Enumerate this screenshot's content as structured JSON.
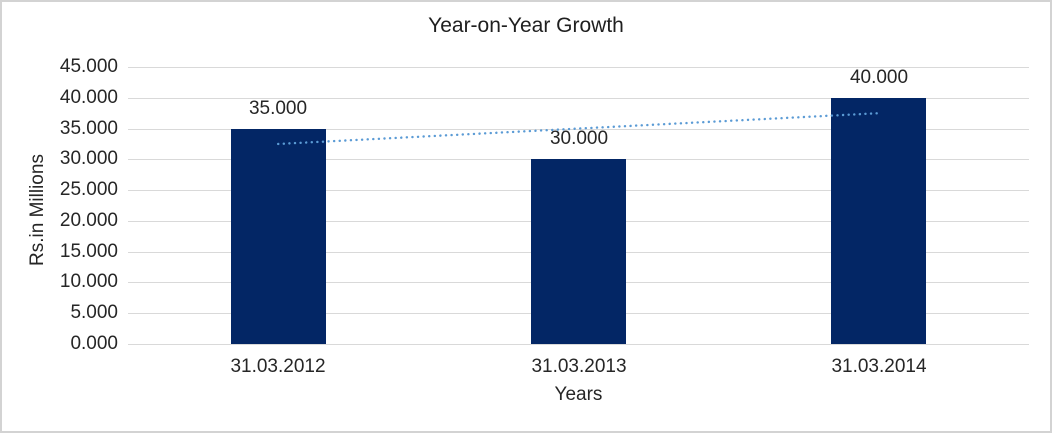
{
  "chart_data": {
    "type": "bar",
    "title": "Year-on-Year Growth",
    "xlabel": "Years",
    "ylabel": "Rs.in Millions",
    "categories": [
      "31.03.2012",
      "31.03.2013",
      "31.03.2014"
    ],
    "values": [
      35,
      30,
      40
    ],
    "value_labels": [
      "35.000",
      "30.000",
      "40.000"
    ],
    "y_ticks": [
      0,
      5,
      10,
      15,
      20,
      25,
      30,
      35,
      40,
      45
    ],
    "y_tick_labels": [
      "0.000",
      "5.000",
      "10.000",
      "15.000",
      "20.000",
      "25.000",
      "30.000",
      "35.000",
      "40.000",
      "45.000"
    ],
    "ylim": [
      0,
      45
    ],
    "grid": "horizontal",
    "legend": "none",
    "bar_color": "#032665",
    "text_color": "#262626",
    "gridline_color": "#d9d9d9",
    "trendline": {
      "type": "linear",
      "style": "dotted",
      "color": "#5b9bd5",
      "fitted_values": [
        32.5,
        35,
        37.5
      ]
    }
  }
}
